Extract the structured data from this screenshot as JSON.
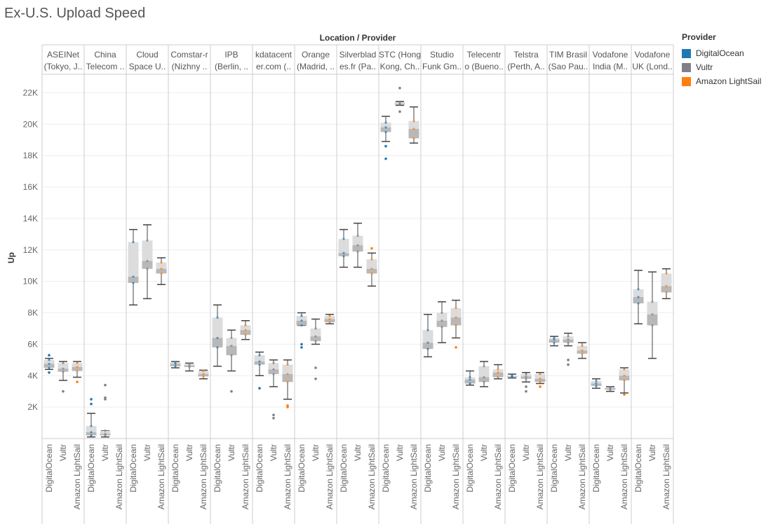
{
  "title": "Ex-U.S. Upload Speed",
  "legend": {
    "title": "Provider",
    "items": [
      {
        "label": "DigitalOcean",
        "color": "#1f77b4"
      },
      {
        "label": "Vultr",
        "color": "#7f7f8c"
      },
      {
        "label": "Amazon LightSail",
        "color": "#ff7f0e"
      }
    ]
  },
  "chart_data": {
    "type": "boxplot",
    "title": "Ex-U.S. Upload Speed",
    "column_header": "Location / Provider",
    "ylabel": "Up",
    "ylim": [
      0,
      23000
    ],
    "yticks": [
      2000,
      4000,
      6000,
      8000,
      10000,
      12000,
      14000,
      16000,
      18000,
      20000,
      22000
    ],
    "ytick_labels": [
      "2K",
      "4K",
      "6K",
      "8K",
      "10K",
      "12K",
      "14K",
      "16K",
      "18K",
      "20K",
      "22K"
    ],
    "providers": [
      "DigitalOcean",
      "Vultr",
      "Amazon LightSail"
    ],
    "groups": [
      {
        "header": [
          "ASEINet",
          "(Tokyo, J.."
        ],
        "boxes": [
          {
            "provider": "DigitalOcean",
            "min": 4400,
            "q1": 4500,
            "median": 4750,
            "q3": 5000,
            "max": 5100,
            "outliers": [
              5300,
              4200
            ]
          },
          {
            "provider": "Vultr",
            "min": 3700,
            "q1": 4250,
            "median": 4450,
            "q3": 4800,
            "max": 4900,
            "outliers": [
              3000
            ]
          },
          {
            "provider": "Amazon LightSail",
            "min": 3900,
            "q1": 4300,
            "median": 4550,
            "q3": 4800,
            "max": 4900,
            "outliers": [
              3600
            ]
          }
        ]
      },
      {
        "header": [
          "China",
          "Telecom .."
        ],
        "boxes": [
          {
            "provider": "DigitalOcean",
            "min": 100,
            "q1": 200,
            "median": 400,
            "q3": 800,
            "max": 1600,
            "outliers": [
              2200,
              2500
            ]
          },
          {
            "provider": "Vultr",
            "min": 100,
            "q1": 200,
            "median": 300,
            "q3": 500,
            "max": 500,
            "outliers": [
              2500,
              2600,
              3400
            ]
          },
          null
        ]
      },
      {
        "header": [
          "Cloud",
          "Space U.."
        ],
        "boxes": [
          {
            "provider": "DigitalOcean",
            "min": 8500,
            "q1": 9900,
            "median": 10300,
            "q3": 12500,
            "max": 13300,
            "outliers": []
          },
          {
            "provider": "Vultr",
            "min": 8900,
            "q1": 10800,
            "median": 11300,
            "q3": 12600,
            "max": 13600,
            "outliers": []
          },
          {
            "provider": "Amazon LightSail",
            "min": 9800,
            "q1": 10500,
            "median": 10800,
            "q3": 11200,
            "max": 11500,
            "outliers": []
          }
        ]
      },
      {
        "header": [
          "Comstar-r",
          "(Nizhny .."
        ],
        "boxes": [
          {
            "provider": "DigitalOcean",
            "min": 4500,
            "q1": 4600,
            "median": 4750,
            "q3": 4850,
            "max": 4900,
            "outliers": []
          },
          {
            "provider": "Vultr",
            "min": 4300,
            "q1": 4550,
            "median": 4650,
            "q3": 4750,
            "max": 4800,
            "outliers": []
          },
          {
            "provider": "Amazon LightSail",
            "min": 3800,
            "q1": 3950,
            "median": 4100,
            "q3": 4300,
            "max": 4350,
            "outliers": []
          }
        ]
      },
      {
        "header": [
          "IPB",
          "(Berlin, .."
        ],
        "boxes": [
          {
            "provider": "DigitalOcean",
            "min": 4600,
            "q1": 5800,
            "median": 6400,
            "q3": 7700,
            "max": 8500,
            "outliers": []
          },
          {
            "provider": "Vultr",
            "min": 4300,
            "q1": 5300,
            "median": 5900,
            "q3": 6400,
            "max": 6900,
            "outliers": [
              3000
            ]
          },
          {
            "provider": "Amazon LightSail",
            "min": 6300,
            "q1": 6600,
            "median": 6900,
            "q3": 7200,
            "max": 7500,
            "outliers": []
          }
        ]
      },
      {
        "header": [
          "kdatacent",
          "er.com (.."
        ],
        "boxes": [
          {
            "provider": "DigitalOcean",
            "min": 4000,
            "q1": 4700,
            "median": 4900,
            "q3": 5300,
            "max": 5500,
            "outliers": [
              3200
            ]
          },
          {
            "provider": "Vultr",
            "min": 3300,
            "q1": 4100,
            "median": 4400,
            "q3": 4800,
            "max": 5000,
            "outliers": [
              1500,
              1300
            ]
          },
          {
            "provider": "Amazon LightSail",
            "min": 2500,
            "q1": 3600,
            "median": 4100,
            "q3": 4700,
            "max": 5000,
            "outliers": [
              2100,
              2000
            ]
          }
        ]
      },
      {
        "header": [
          "Orange",
          "(Madrid, .."
        ],
        "boxes": [
          {
            "provider": "DigitalOcean",
            "min": 7200,
            "q1": 7200,
            "median": 7500,
            "q3": 7800,
            "max": 8000,
            "outliers": [
              6000,
              5800
            ]
          },
          {
            "provider": "Vultr",
            "min": 6000,
            "q1": 6200,
            "median": 6500,
            "q3": 7000,
            "max": 7600,
            "outliers": [
              4500,
              3800
            ]
          },
          {
            "provider": "Amazon LightSail",
            "min": 7300,
            "q1": 7400,
            "median": 7600,
            "q3": 7800,
            "max": 7900,
            "outliers": []
          }
        ]
      },
      {
        "header": [
          "Silverblad",
          "es.fr (Pa.."
        ],
        "boxes": [
          {
            "provider": "DigitalOcean",
            "min": 10900,
            "q1": 11600,
            "median": 11800,
            "q3": 12700,
            "max": 13300,
            "outliers": []
          },
          {
            "provider": "Vultr",
            "min": 10900,
            "q1": 11900,
            "median": 12300,
            "q3": 12900,
            "max": 13700,
            "outliers": []
          },
          {
            "provider": "Amazon LightSail",
            "min": 9700,
            "q1": 10500,
            "median": 10800,
            "q3": 11400,
            "max": 11800,
            "outliers": [
              12100
            ]
          }
        ]
      },
      {
        "header": [
          "STC (Hong",
          "Kong, Ch.."
        ],
        "boxes": [
          {
            "provider": "DigitalOcean",
            "min": 18900,
            "q1": 19500,
            "median": 19800,
            "q3": 20100,
            "max": 20500,
            "outliers": [
              18600,
              17800
            ]
          },
          {
            "provider": "Vultr",
            "min": 21200,
            "q1": 21250,
            "median": 21300,
            "q3": 21400,
            "max": 21450,
            "outliers": [
              22300,
              20800
            ]
          },
          {
            "provider": "Amazon LightSail",
            "min": 18800,
            "q1": 19100,
            "median": 19700,
            "q3": 20200,
            "max": 21100,
            "outliers": []
          }
        ]
      },
      {
        "header": [
          "Studio",
          "Funk Gm.."
        ],
        "boxes": [
          {
            "provider": "DigitalOcean",
            "min": 5200,
            "q1": 5700,
            "median": 6100,
            "q3": 6900,
            "max": 7900,
            "outliers": []
          },
          {
            "provider": "Vultr",
            "min": 6100,
            "q1": 7100,
            "median": 7500,
            "q3": 8000,
            "max": 8700,
            "outliers": []
          },
          {
            "provider": "Amazon LightSail",
            "min": 6400,
            "q1": 7200,
            "median": 7700,
            "q3": 8300,
            "max": 8800,
            "outliers": [
              5800
            ]
          }
        ]
      },
      {
        "header": [
          "Telecentr",
          "o (Bueno.."
        ],
        "boxes": [
          {
            "provider": "DigitalOcean",
            "min": 3400,
            "q1": 3500,
            "median": 3750,
            "q3": 3900,
            "max": 4300,
            "outliers": []
          },
          {
            "provider": "Vultr",
            "min": 3300,
            "q1": 3600,
            "median": 3900,
            "q3": 4600,
            "max": 4900,
            "outliers": []
          },
          {
            "provider": "Amazon LightSail",
            "min": 3800,
            "q1": 3900,
            "median": 4200,
            "q3": 4400,
            "max": 4700,
            "outliers": []
          }
        ]
      },
      {
        "header": [
          "Telstra",
          "(Perth, A.."
        ],
        "boxes": [
          {
            "provider": "DigitalOcean",
            "min": 3850,
            "q1": 3900,
            "median": 3950,
            "q3": 4000,
            "max": 4100,
            "outliers": []
          },
          {
            "provider": "Vultr",
            "min": 3600,
            "q1": 3800,
            "median": 3950,
            "q3": 4100,
            "max": 4200,
            "outliers": [
              3300,
              3000
            ]
          },
          {
            "provider": "Amazon LightSail",
            "min": 3500,
            "q1": 3600,
            "median": 3800,
            "q3": 4100,
            "max": 4200,
            "outliers": [
              3300
            ]
          }
        ]
      },
      {
        "header": [
          "TIM Brasil",
          "(Sao Pau.."
        ],
        "boxes": [
          {
            "provider": "DigitalOcean",
            "min": 5900,
            "q1": 6100,
            "median": 6300,
            "q3": 6400,
            "max": 6500,
            "outliers": []
          },
          {
            "provider": "Vultr",
            "min": 5900,
            "q1": 6100,
            "median": 6300,
            "q3": 6500,
            "max": 6700,
            "outliers": [
              5000,
              4700
            ]
          },
          {
            "provider": "Amazon LightSail",
            "min": 5100,
            "q1": 5400,
            "median": 5600,
            "q3": 5900,
            "max": 6100,
            "outliers": []
          }
        ]
      },
      {
        "header": [
          "Vodafone",
          "India (M.."
        ],
        "boxes": [
          {
            "provider": "DigitalOcean",
            "min": 3200,
            "q1": 3350,
            "median": 3500,
            "q3": 3650,
            "max": 3800,
            "outliers": []
          },
          {
            "provider": "Vultr",
            "min": 3000,
            "q1": 3100,
            "median": 3200,
            "q3": 3250,
            "max": 3300,
            "outliers": []
          },
          {
            "provider": "Amazon LightSail",
            "min": 2900,
            "q1": 3700,
            "median": 4000,
            "q3": 4400,
            "max": 4500,
            "outliers": [
              2800
            ]
          }
        ]
      },
      {
        "header": [
          "Vodafone",
          "UK (Lond.."
        ],
        "boxes": [
          {
            "provider": "DigitalOcean",
            "min": 7300,
            "q1": 8600,
            "median": 9000,
            "q3": 9500,
            "max": 10700,
            "outliers": []
          },
          {
            "provider": "Vultr",
            "min": 5100,
            "q1": 7200,
            "median": 7900,
            "q3": 8700,
            "max": 10600,
            "outliers": []
          },
          {
            "provider": "Amazon LightSail",
            "min": 8900,
            "q1": 9300,
            "median": 9700,
            "q3": 10500,
            "max": 10800,
            "outliers": []
          }
        ]
      }
    ]
  }
}
